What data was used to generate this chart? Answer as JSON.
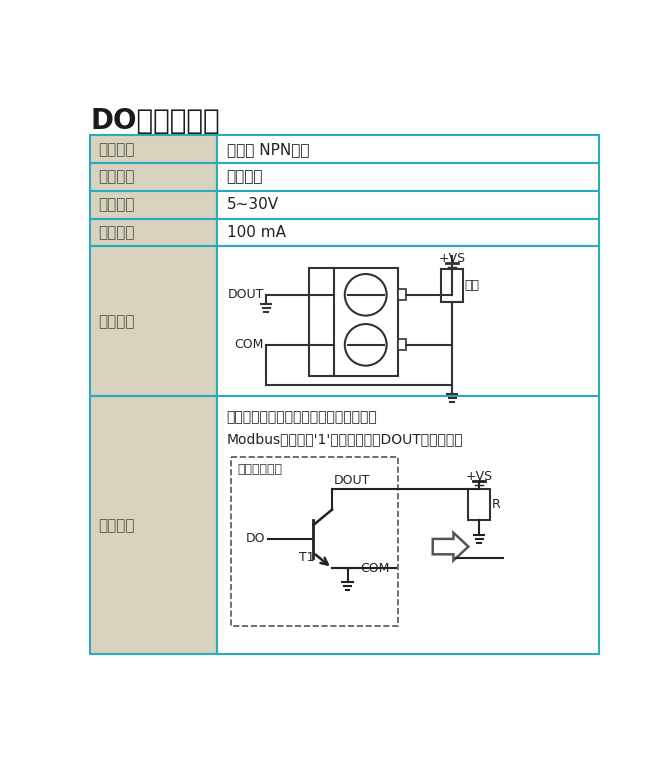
{
  "title": "DO晶体管输出",
  "title_color": "#1a1a1a",
  "title_fontsize": 20,
  "border_color": "#2aabbb",
  "header_bg": "#d8d3be",
  "cell_bg": "#ffffff",
  "rows": [
    {
      "label": "输出方式",
      "value": "集电极 NPN输出"
    },
    {
      "label": "隔离设计",
      "value": "光耦隔离"
    },
    {
      "label": "负载电压",
      "value": "5~30V"
    },
    {
      "label": "负载电流",
      "value": "100 mA"
    },
    {
      "label": "接线方式",
      "value": ""
    },
    {
      "label": "等效电路",
      "value": ""
    }
  ],
  "label_color": "#555544",
  "value_color": "#222222",
  "text_fontsize": 11,
  "equiv_text1": "需要在输出端口连接负载以及上拉电源；",
  "equiv_text2": "Modbus寄存器置'1'晶体管导通，DOUT为低电平；"
}
